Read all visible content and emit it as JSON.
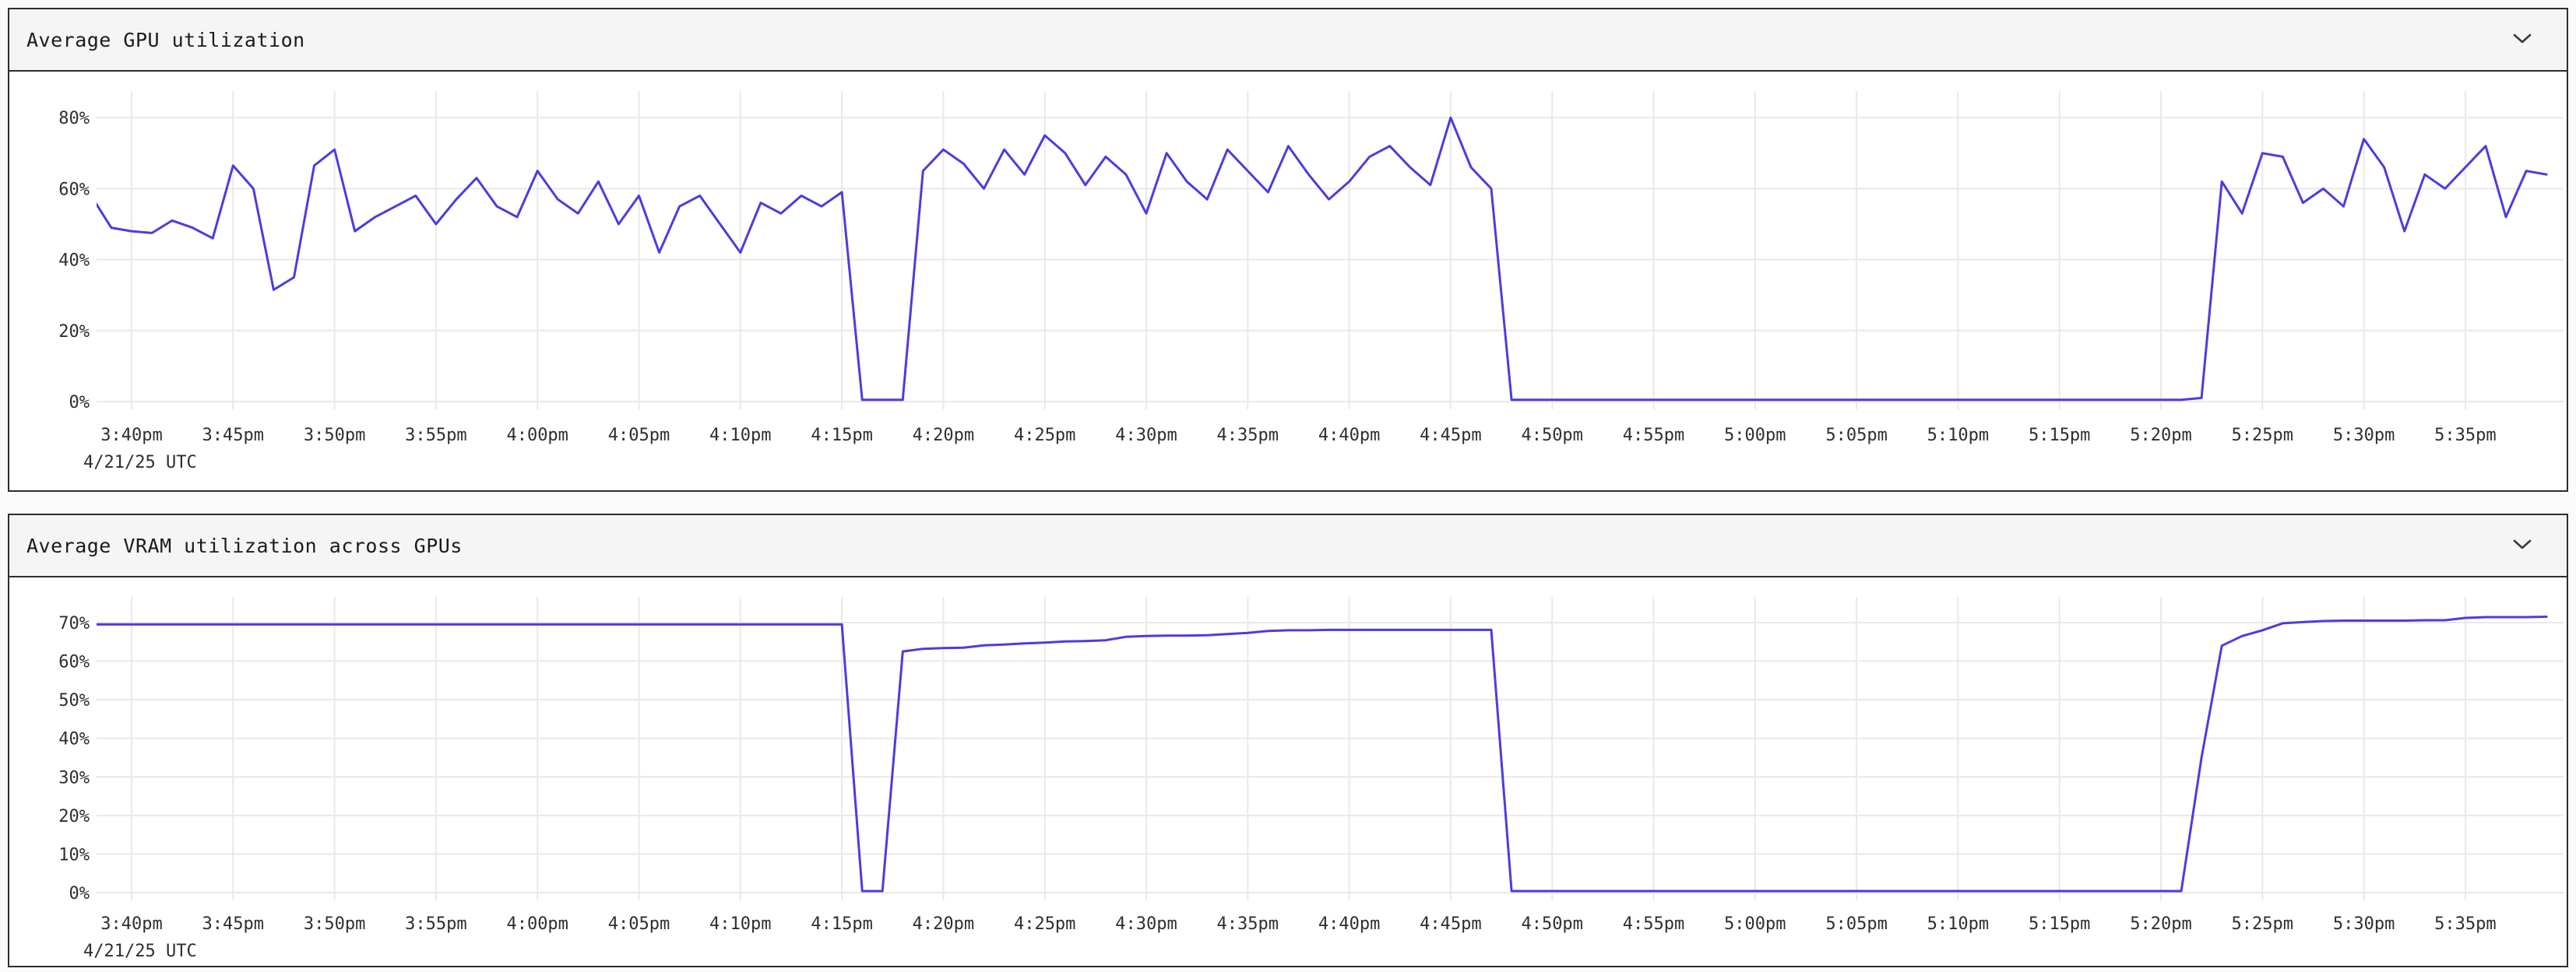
{
  "panels": [
    {
      "title": "Average GPU utilization",
      "collapse_icon": "chevron-down",
      "collapsed": false
    },
    {
      "title": "Average VRAM utilization across GPUs",
      "collapse_icon": "chevron-down",
      "collapsed": false
    }
  ],
  "colors": {
    "line": "#4b3ce0",
    "grid": "#e9e9e9",
    "panel_border": "#2e2e2e",
    "header_bg": "#f5f5f5",
    "tick_text": "#2e2e2e"
  },
  "chart_data": [
    {
      "type": "line",
      "title": "Average GPU utilization",
      "series_name": "avg_gpu_utilization_pct",
      "color": "#4b3ce0",
      "grid": true,
      "legend": "none",
      "date_label": "4/21/25 UTC",
      "x_start": "3:38pm",
      "x_end": "5:39pm",
      "step_minutes": 1,
      "x_tick_interval_minutes": 5,
      "x_tick_labels": [
        "3:40pm",
        "3:45pm",
        "3:50pm",
        "3:55pm",
        "4:00pm",
        "4:05pm",
        "4:10pm",
        "4:15pm",
        "4:20pm",
        "4:25pm",
        "4:30pm",
        "4:35pm",
        "4:40pm",
        "4:45pm",
        "4:50pm",
        "4:55pm",
        "5:00pm",
        "5:05pm",
        "5:10pm",
        "5:15pm",
        "5:20pm",
        "5:25pm",
        "5:30pm",
        "5:35pm"
      ],
      "y_tick_labels": [
        "0%",
        "20%",
        "40%",
        "60%",
        "80%"
      ],
      "y_tick_values": [
        0,
        20,
        40,
        60,
        80
      ],
      "ylim": [
        0,
        88
      ],
      "values": [
        58,
        49,
        48,
        47.5,
        51,
        49,
        46,
        66.5,
        60,
        31.5,
        35,
        66.5,
        71,
        48,
        52,
        55,
        58,
        50,
        57,
        63,
        55,
        52,
        65,
        57,
        53,
        62,
        50,
        58,
        42,
        55,
        58,
        50,
        42,
        56,
        53,
        58,
        55,
        59,
        0.5,
        0.5,
        0.5,
        65,
        71,
        67,
        60,
        71,
        64,
        75,
        70,
        61,
        69,
        64,
        53,
        70,
        62,
        57,
        71,
        65,
        59,
        72,
        64,
        57,
        62,
        69,
        72,
        66,
        61,
        80,
        66,
        60,
        0.5,
        0.5,
        0.5,
        0.5,
        0.5,
        0.5,
        0.5,
        0.5,
        0.5,
        0.5,
        0.5,
        0.5,
        0.5,
        0.5,
        0.5,
        0.5,
        0.5,
        0.5,
        0.5,
        0.5,
        0.5,
        0.5,
        0.5,
        0.5,
        0.5,
        0.5,
        0.5,
        0.5,
        0.5,
        0.5,
        0.5,
        0.5,
        0.5,
        0.5,
        1,
        62,
        53,
        70,
        69,
        56,
        60,
        55,
        74,
        66,
        48,
        64,
        60,
        66,
        72,
        52,
        65,
        64
      ]
    },
    {
      "type": "line",
      "title": "Average VRAM utilization across GPUs",
      "series_name": "avg_vram_utilization_pct",
      "color": "#4b3ce0",
      "grid": true,
      "legend": "none",
      "date_label": "4/21/25 UTC",
      "x_start": "3:38pm",
      "x_end": "5:39pm",
      "step_minutes": 1,
      "x_tick_interval_minutes": 5,
      "x_tick_labels": [
        "3:40pm",
        "3:45pm",
        "3:50pm",
        "3:55pm",
        "4:00pm",
        "4:05pm",
        "4:10pm",
        "4:15pm",
        "4:20pm",
        "4:25pm",
        "4:30pm",
        "4:35pm",
        "4:40pm",
        "4:45pm",
        "4:50pm",
        "4:55pm",
        "5:00pm",
        "5:05pm",
        "5:10pm",
        "5:15pm",
        "5:20pm",
        "5:25pm",
        "5:30pm",
        "5:35pm"
      ],
      "y_tick_labels": [
        "0%",
        "10%",
        "20%",
        "30%",
        "40%",
        "50%",
        "60%",
        "70%"
      ],
      "y_tick_values": [
        0,
        10,
        20,
        30,
        40,
        50,
        60,
        70
      ],
      "ylim": [
        0,
        77
      ],
      "values": [
        69.5,
        69.5,
        69.5,
        69.5,
        69.5,
        69.5,
        69.5,
        69.5,
        69.5,
        69.5,
        69.5,
        69.5,
        69.5,
        69.5,
        69.5,
        69.5,
        69.5,
        69.5,
        69.5,
        69.5,
        69.5,
        69.5,
        69.5,
        69.5,
        69.5,
        69.5,
        69.5,
        69.5,
        69.5,
        69.5,
        69.5,
        69.5,
        69.5,
        69.5,
        69.5,
        69.5,
        69.5,
        69.5,
        0.4,
        0.4,
        62.5,
        63.2,
        63.4,
        63.5,
        64.1,
        64.3,
        64.6,
        64.8,
        65.1,
        65.2,
        65.4,
        66.3,
        66.5,
        66.6,
        66.6,
        66.7,
        67,
        67.3,
        67.8,
        68,
        68,
        68.1,
        68.1,
        68.1,
        68.1,
        68.1,
        68.1,
        68.1,
        68.1,
        68.1,
        0.4,
        0.4,
        0.4,
        0.4,
        0.4,
        0.4,
        0.4,
        0.4,
        0.4,
        0.4,
        0.4,
        0.4,
        0.4,
        0.4,
        0.4,
        0.4,
        0.4,
        0.4,
        0.4,
        0.4,
        0.4,
        0.4,
        0.4,
        0.4,
        0.4,
        0.4,
        0.4,
        0.4,
        0.4,
        0.4,
        0.4,
        0.4,
        0.4,
        0.4,
        35,
        64,
        66.5,
        68,
        69.8,
        70.1,
        70.4,
        70.5,
        70.5,
        70.5,
        70.5,
        70.6,
        70.6,
        71.2,
        71.4,
        71.4,
        71.4,
        71.5
      ]
    }
  ]
}
